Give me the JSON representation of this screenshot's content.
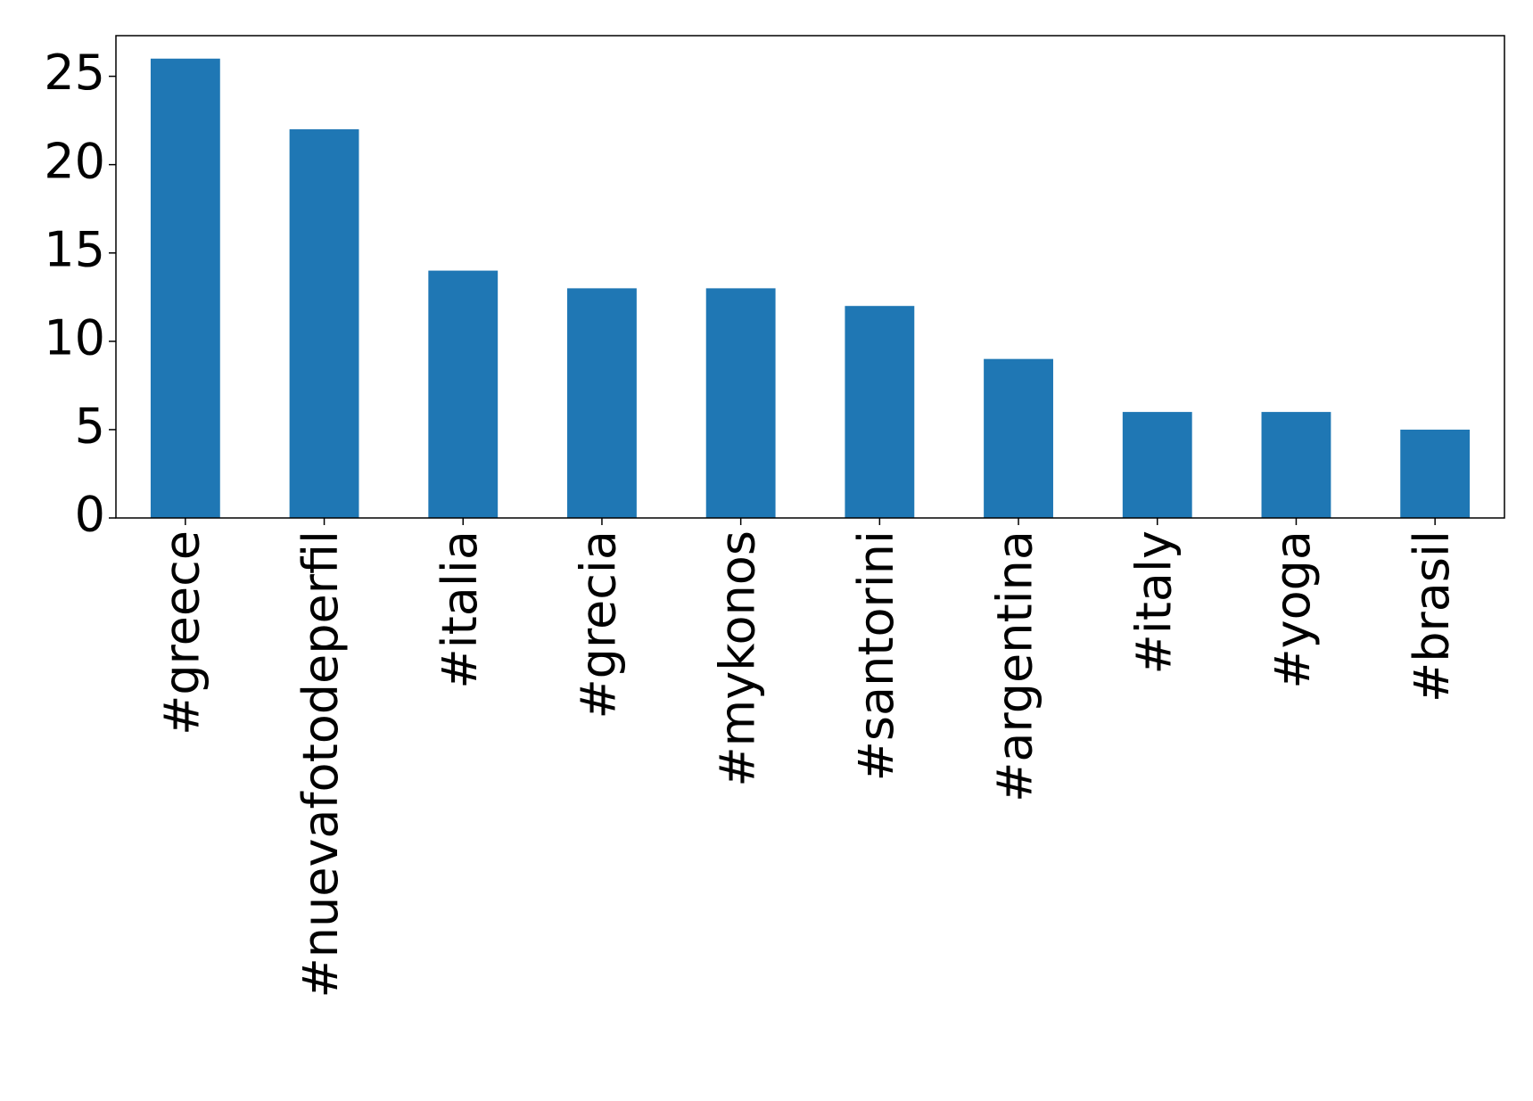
{
  "chart_data": {
    "type": "bar",
    "categories": [
      "#greece",
      "#nuevafotodeperfil",
      "#italia",
      "#grecia",
      "#mykonos",
      "#santorini",
      "#argentina",
      "#italy",
      "#yoga",
      "#brasil"
    ],
    "values": [
      26,
      22,
      14,
      13,
      13,
      12,
      9,
      6,
      6,
      5
    ],
    "color": "#1f77b4",
    "ylim": [
      0,
      27.3
    ],
    "yticks": [
      0,
      5,
      10,
      15,
      20,
      25
    ],
    "grid": false
  }
}
